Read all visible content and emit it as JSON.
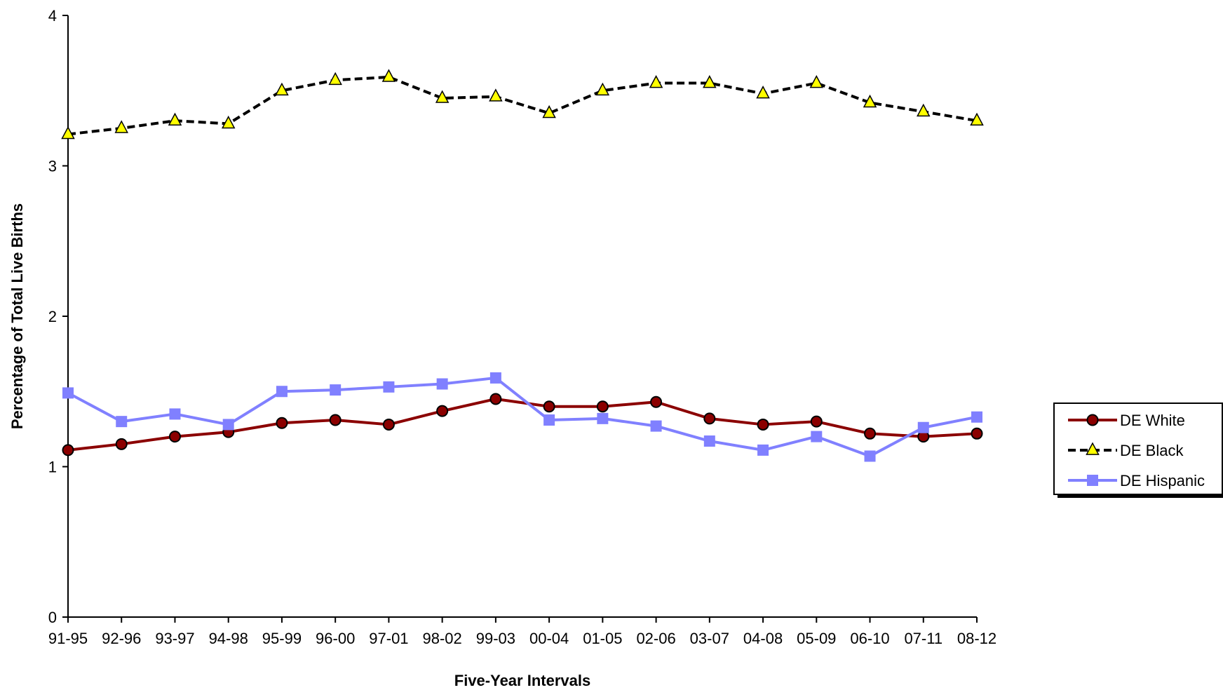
{
  "chart_data": {
    "type": "line",
    "title": "",
    "xlabel": "Five-Year Intervals",
    "ylabel": "Percentage of Total Live Births",
    "ylim": [
      0,
      4
    ],
    "yticks": [
      "0",
      "1",
      "2",
      "3",
      "4"
    ],
    "categories": [
      "91-95",
      "92-96",
      "93-97",
      "94-98",
      "95-99",
      "96-00",
      "97-01",
      "98-02",
      "99-03",
      "00-04",
      "01-05",
      "02-06",
      "03-07",
      "04-08",
      "05-09",
      "06-10",
      "07-11",
      "08-12"
    ],
    "grid": false,
    "legend_position": "right",
    "series": [
      {
        "name": "DE White",
        "color": "#8b0000",
        "line_style": "solid",
        "marker": "circle",
        "values": [
          1.11,
          1.15,
          1.2,
          1.23,
          1.29,
          1.31,
          1.28,
          1.37,
          1.45,
          1.4,
          1.4,
          1.43,
          1.32,
          1.28,
          1.3,
          1.22,
          1.2,
          1.22
        ]
      },
      {
        "name": "DE Black",
        "color": "#000000",
        "marker_fill": "#ffff00",
        "line_style": "dashed",
        "marker": "triangle",
        "values": [
          3.21,
          3.25,
          3.3,
          3.28,
          3.5,
          3.57,
          3.59,
          3.45,
          3.46,
          3.35,
          3.5,
          3.55,
          3.55,
          3.48,
          3.55,
          3.42,
          3.36,
          3.3
        ]
      },
      {
        "name": "DE Hispanic",
        "color": "#8080ff",
        "line_style": "solid",
        "marker": "square",
        "values": [
          1.49,
          1.3,
          1.35,
          1.28,
          1.5,
          1.51,
          1.53,
          1.55,
          1.59,
          1.31,
          1.32,
          1.27,
          1.17,
          1.11,
          1.2,
          1.07,
          1.26,
          1.33
        ]
      }
    ]
  }
}
